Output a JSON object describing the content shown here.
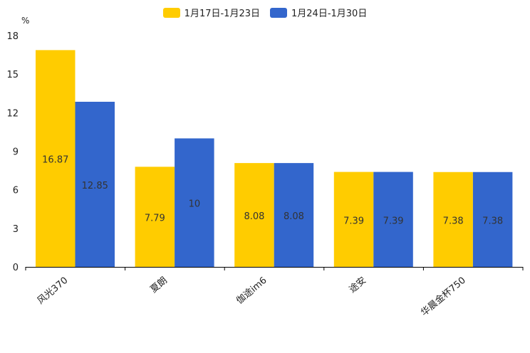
{
  "chart_data": {
    "type": "bar",
    "ylabel": "%",
    "ylim": [
      0,
      18
    ],
    "yticks": [
      "0",
      "3",
      "6",
      "9",
      "12",
      "15",
      "18"
    ],
    "categories": [
      "风光370",
      "夏朗",
      "伽途im6",
      "途安",
      "华晨金杯750"
    ],
    "series": [
      {
        "name": "1月17日-1月23日",
        "color": "#FFCC00",
        "values": [
          16.87,
          7.79,
          8.08,
          7.39,
          7.38
        ],
        "labels": [
          "16.87",
          "7.79",
          "8.08",
          "7.39",
          "7.38"
        ]
      },
      {
        "name": "1月24日-1月30日",
        "color": "#3366CC",
        "values": [
          12.85,
          10,
          8.08,
          7.39,
          7.38
        ],
        "labels": [
          "12.85",
          "10",
          "8.08",
          "7.39",
          "7.38"
        ]
      }
    ]
  }
}
